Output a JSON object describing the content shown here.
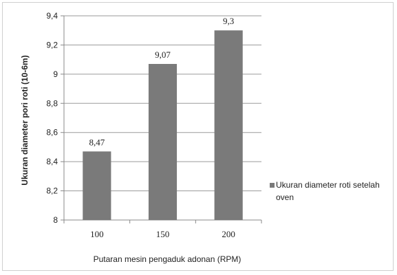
{
  "chart_data": {
    "type": "bar",
    "categories": [
      "100",
      "150",
      "200"
    ],
    "series": [
      {
        "name": "Ukuran diameter roti setelah oven",
        "values": [
          8.47,
          9.07,
          9.3
        ],
        "data_labels": [
          "8,47",
          "9,07",
          "9,3"
        ],
        "color": "#7a7a7a"
      }
    ],
    "xlabel": "Putaran mesin pengaduk adonan (RPM)",
    "ylabel": "Ukuran diameter pori roti (10-6m)",
    "ylim": [
      8,
      9.4
    ],
    "yticks": [
      8,
      8.2,
      8.4,
      8.6,
      8.8,
      9,
      9.2,
      9.4
    ],
    "ytick_labels": [
      "8",
      "8,2",
      "8,4",
      "8,6",
      "8,8",
      "9",
      "9,2",
      "9,4"
    ],
    "grid": true,
    "legend_position": "right",
    "legend_lines": [
      "Ukuran diameter roti setelah",
      "oven"
    ],
    "colors": {
      "bar": "#7a7a7a",
      "grid": "#9a9a9a",
      "axis": "#888888"
    }
  }
}
